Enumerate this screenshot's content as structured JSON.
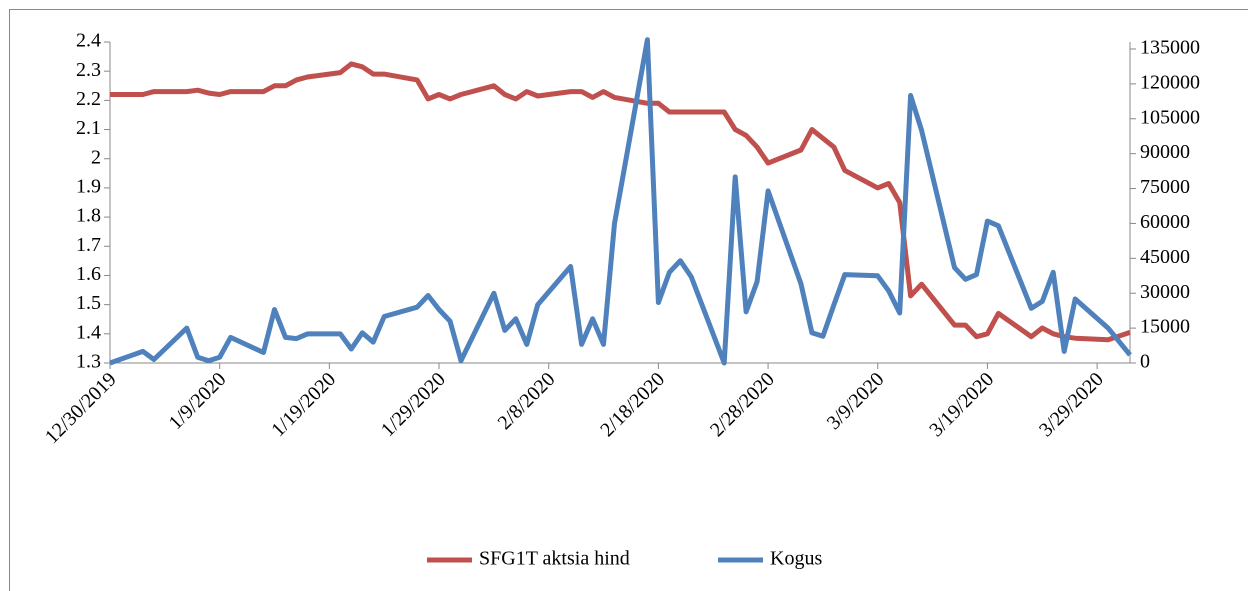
{
  "chart_data": {
    "type": "line",
    "x": [
      "12/30/2019",
      "1/2/2020",
      "1/3/2020",
      "1/6/2020",
      "1/7/2020",
      "1/8/2020",
      "1/9/2020",
      "1/10/2020",
      "1/13/2020",
      "1/14/2020",
      "1/15/2020",
      "1/16/2020",
      "1/17/2020",
      "1/20/2020",
      "1/21/2020",
      "1/22/2020",
      "1/23/2020",
      "1/24/2020",
      "1/27/2020",
      "1/28/2020",
      "1/29/2020",
      "1/30/2020",
      "1/31/2020",
      "2/3/2020",
      "2/4/2020",
      "2/5/2020",
      "2/6/2020",
      "2/7/2020",
      "2/10/2020",
      "2/11/2020",
      "2/12/2020",
      "2/13/2020",
      "2/14/2020",
      "2/17/2020",
      "2/18/2020",
      "2/19/2020",
      "2/20/2020",
      "2/21/2020",
      "2/24/2020",
      "2/25/2020",
      "2/26/2020",
      "2/27/2020",
      "2/28/2020",
      "3/2/2020",
      "3/3/2020",
      "3/4/2020",
      "3/5/2020",
      "3/6/2020",
      "3/9/2020",
      "3/10/2020",
      "3/11/2020",
      "3/12/2020",
      "3/13/2020",
      "3/16/2020",
      "3/17/2020",
      "3/18/2020",
      "3/19/2020",
      "3/20/2020",
      "3/23/2020",
      "3/24/2020",
      "3/25/2020",
      "3/26/2020",
      "3/27/2020",
      "3/30/2020",
      "4/1/2020"
    ],
    "series": [
      {
        "name": "SFG1T aktsia hind",
        "color": "#c0504d",
        "axis": "y",
        "values": [
          2.22,
          2.22,
          2.23,
          2.23,
          2.235,
          2.225,
          2.22,
          2.23,
          2.23,
          2.25,
          2.25,
          2.27,
          2.28,
          2.295,
          2.325,
          2.315,
          2.29,
          2.29,
          2.27,
          2.205,
          2.22,
          2.205,
          2.22,
          2.25,
          2.22,
          2.205,
          2.23,
          2.215,
          2.23,
          2.23,
          2.21,
          2.23,
          2.21,
          2.19,
          2.19,
          2.16,
          2.16,
          2.16,
          2.16,
          2.1,
          2.08,
          2.04,
          1.985,
          2.03,
          2.1,
          2.07,
          2.04,
          1.96,
          1.9,
          1.915,
          1.85,
          1.53,
          1.57,
          1.43,
          1.43,
          1.39,
          1.4,
          1.47,
          1.39,
          1.42,
          1.4,
          1.39,
          1.385,
          1.38,
          1.405
        ]
      },
      {
        "name": "Kogus",
        "color": "#4f81bd",
        "axis": "y2",
        "values": [
          0,
          5000,
          1500,
          15000,
          2500,
          1000,
          2500,
          11000,
          4500,
          23000,
          11000,
          10500,
          12500,
          12500,
          6000,
          13000,
          9000,
          20000,
          24000,
          29000,
          23000,
          18000,
          1000,
          30000,
          14000,
          19000,
          8000,
          25000,
          41500,
          8000,
          19000,
          8000,
          60000,
          139000,
          26000,
          39000,
          44000,
          37000,
          0,
          80000,
          22000,
          35000,
          74000,
          34000,
          13000,
          11500,
          25000,
          38000,
          37500,
          31000,
          21500,
          115000,
          100000,
          41000,
          36000,
          38000,
          61000,
          59000,
          23500,
          26500,
          39000,
          5000,
          27500,
          15000,
          3500
        ]
      }
    ],
    "xlim": [
      "12/30/2019",
      "4/1/2020"
    ],
    "xticks": [
      "12/30/2019",
      "1/9/2020",
      "1/19/2020",
      "1/29/2020",
      "2/8/2020",
      "2/18/2020",
      "2/28/2020",
      "3/9/2020",
      "3/19/2020",
      "3/29/2020"
    ],
    "ylim": [
      1.3,
      2.4
    ],
    "yticks": [
      1.3,
      1.4,
      1.5,
      1.6,
      1.7,
      1.8,
      1.9,
      2,
      2.1,
      2.2,
      2.3,
      2.4
    ],
    "y2lim": [
      0,
      138000
    ],
    "y2ticks": [
      0,
      15000,
      30000,
      45000,
      60000,
      75000,
      90000,
      105000,
      120000,
      135000
    ],
    "legend": "bottom"
  }
}
